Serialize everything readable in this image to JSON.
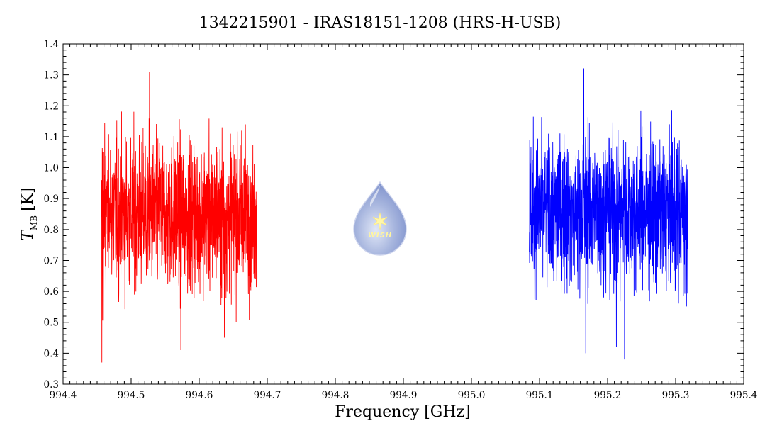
{
  "chart_data": {
    "type": "line",
    "title": "1342215901 - IRAS18151-1208 (HRS-H-USB)",
    "xlabel": "Frequency [GHz]",
    "ylabel_main": "T",
    "ylabel_sub": "MB",
    "ylabel_unit": "[K]",
    "xlim": [
      994.4,
      995.4
    ],
    "ylim": [
      0.3,
      1.4
    ],
    "x_ticks": [
      "994.4",
      "994.5",
      "994.6",
      "994.7",
      "994.8",
      "994.9",
      "995.0",
      "995.1",
      "995.2",
      "995.3",
      "995.4"
    ],
    "y_ticks": [
      "0.3",
      "0.4",
      "0.5",
      "0.6",
      "0.7",
      "0.8",
      "0.9",
      "1.0",
      "1.1",
      "1.2",
      "1.3",
      "1.4"
    ],
    "grid": false,
    "series": [
      {
        "color": "#ff0000",
        "x_range": [
          994.456,
          994.685
        ],
        "mean": 0.85,
        "extremes": [
          {
            "x": 994.457,
            "y": 0.37
          },
          {
            "x": 994.527,
            "y": 1.31
          },
          {
            "x": 994.573,
            "y": 0.41
          },
          {
            "x": 994.637,
            "y": 0.45
          }
        ]
      },
      {
        "color": "#0000ff",
        "x_range": [
          995.085,
          995.318
        ],
        "mean": 0.86,
        "extremes": [
          {
            "x": 995.165,
            "y": 1.32
          },
          {
            "x": 995.168,
            "y": 0.4
          },
          {
            "x": 995.213,
            "y": 0.42
          },
          {
            "x": 995.225,
            "y": 0.38
          }
        ]
      }
    ]
  },
  "logo": {
    "text": "WISH"
  }
}
